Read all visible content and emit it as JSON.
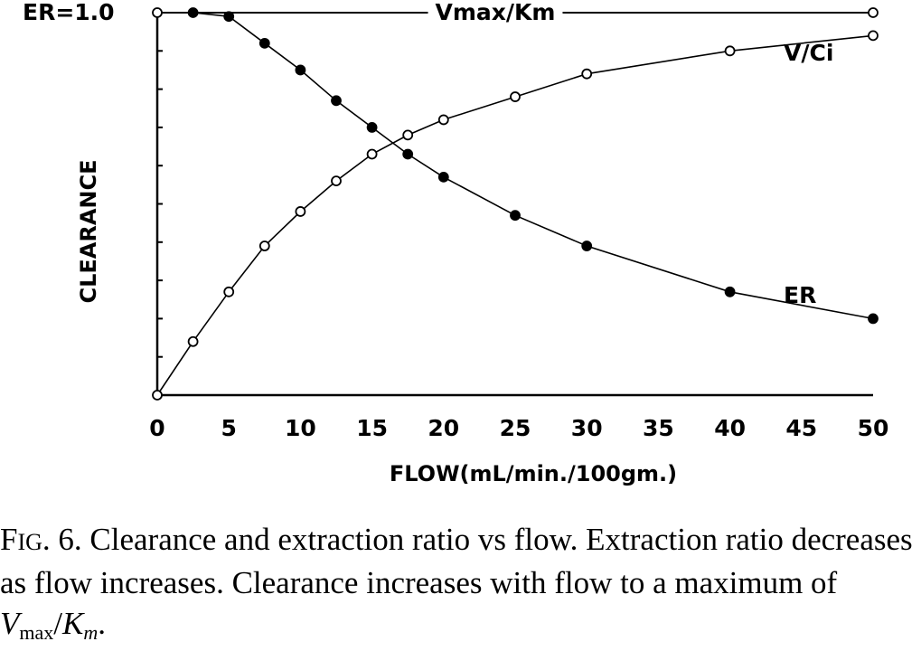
{
  "chart_data": {
    "type": "line",
    "xlabel": "FLOW(mL/min./100gm.)",
    "ylabel": "CLEARANCE",
    "xlim": [
      0,
      50
    ],
    "x_ticks": [
      "0",
      "5",
      "10",
      "15",
      "20",
      "25",
      "30",
      "35",
      "40",
      "45",
      "50"
    ],
    "y_top_label": "ER=1.0",
    "ylim": [
      0,
      1.0
    ],
    "grid": false,
    "series": [
      {
        "name": "Vmax/Km",
        "marker": "open",
        "x": [
          0,
          50
        ],
        "y": [
          1.0,
          1.0
        ]
      },
      {
        "name": "V/Ci",
        "marker": "open",
        "x": [
          0,
          2.5,
          5,
          7.5,
          10,
          12.5,
          15,
          17.5,
          20,
          25,
          30,
          40,
          50
        ],
        "y": [
          0.0,
          0.14,
          0.27,
          0.39,
          0.48,
          0.56,
          0.63,
          0.68,
          0.72,
          0.78,
          0.84,
          0.9,
          0.94
        ]
      },
      {
        "name": "ER",
        "marker": "filled",
        "x": [
          2.5,
          5,
          7.5,
          10,
          12.5,
          15,
          17.5,
          20,
          25,
          30,
          40,
          50
        ],
        "y": [
          1.0,
          0.99,
          0.92,
          0.85,
          0.77,
          0.7,
          0.63,
          0.57,
          0.47,
          0.39,
          0.27,
          0.2
        ]
      }
    ]
  },
  "caption": {
    "fig_first": "F",
    "fig_rest": "IG",
    "text_main": ". 6. Clearance and extraction ratio vs flow. Extraction ratio decreases as flow increases. Clearance increases with flow to a maximum of ",
    "v": "V",
    "v_sub": "max",
    "slash": "/",
    "k": "K",
    "k_sub": "m",
    "end": "."
  }
}
